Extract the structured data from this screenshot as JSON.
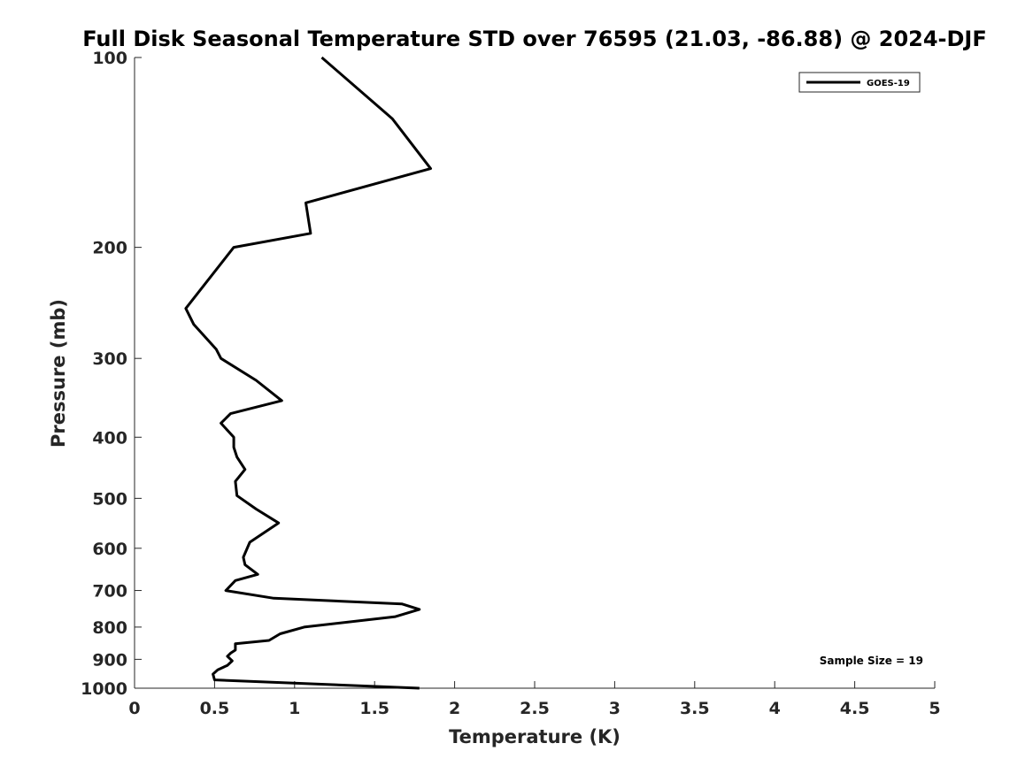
{
  "chart_data": {
    "type": "line",
    "title": "Full Disk Seasonal Temperature STD over 76595 (21.03, -86.88) @ 2024-DJF",
    "xlabel": "Temperature (K)",
    "ylabel": "Pressure (mb)",
    "xlim": [
      0,
      5
    ],
    "ylim": [
      1000,
      100
    ],
    "y_scale": "log",
    "x_ticks": [
      0,
      0.5,
      1,
      1.5,
      2,
      2.5,
      3,
      3.5,
      4,
      4.5,
      5
    ],
    "x_tick_labels": [
      "0",
      "0.5",
      "1",
      "1.5",
      "2",
      "2.5",
      "3",
      "3.5",
      "4",
      "4.5",
      "5"
    ],
    "y_ticks": [
      100,
      200,
      300,
      400,
      500,
      600,
      700,
      800,
      900,
      1000
    ],
    "y_tick_labels": [
      "100",
      "200",
      "300",
      "400",
      "500",
      "600",
      "700",
      "800",
      "900",
      "1000"
    ],
    "grid": false,
    "legend_position": "top-right",
    "annotation": "Sample Size = 19",
    "series": [
      {
        "name": "GOES-19",
        "color": "#000000",
        "x": [
          1.17,
          1.61,
          1.85,
          1.07,
          1.1,
          0.62,
          0.32,
          0.37,
          0.51,
          0.54,
          0.76,
          0.92,
          0.6,
          0.54,
          0.62,
          0.62,
          0.64,
          0.69,
          0.63,
          0.64,
          0.76,
          0.9,
          0.72,
          0.68,
          0.69,
          0.77,
          0.63,
          0.57,
          0.87,
          1.67,
          1.78,
          1.63,
          1.06,
          0.91,
          0.84,
          0.63,
          0.63,
          0.6,
          0.58,
          0.61,
          0.58,
          0.52,
          0.49,
          0.5,
          1.78
        ],
        "y": [
          100,
          125,
          150,
          170,
          190,
          200,
          250,
          265,
          290,
          300,
          325,
          350,
          367,
          380,
          400,
          415,
          430,
          450,
          470,
          495,
          520,
          547,
          587,
          620,
          637,
          660,
          675,
          700,
          720,
          735,
          750,
          770,
          800,
          820,
          840,
          850,
          870,
          880,
          890,
          905,
          920,
          935,
          950,
          970,
          1000
        ]
      }
    ]
  }
}
